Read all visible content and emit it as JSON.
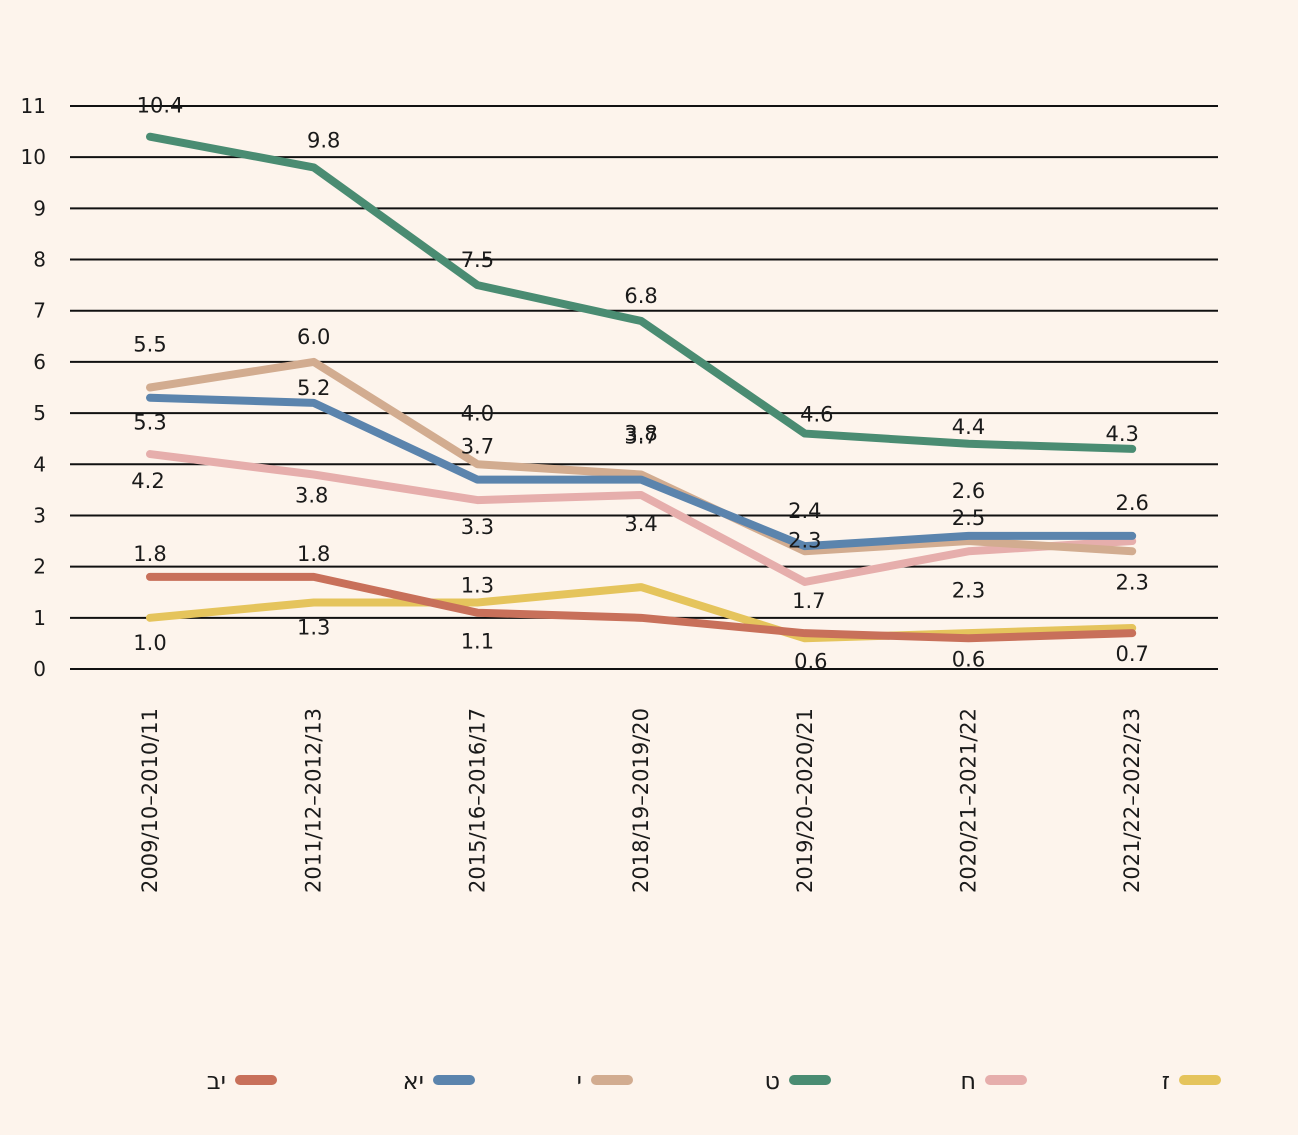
{
  "chart_data": {
    "type": "line",
    "title": "",
    "xlabel": "",
    "ylabel": "",
    "ylim": [
      0,
      11
    ],
    "yticks": [
      "0",
      "1",
      "2",
      "3",
      "4",
      "5",
      "6",
      "7",
      "8",
      "9",
      "10",
      "11"
    ],
    "categories": [
      "2009/10–2010/11",
      "2011/12–2012/13",
      "2015/16–2016/17",
      "2018/19–2019/20",
      "2019/20–2020/21",
      "2020/21–2021/22",
      "2021/22–2022/23"
    ],
    "grid": true,
    "legend_position": "bottom",
    "series": [
      {
        "name": "יב",
        "color": "#c8705a",
        "values": [
          1.8,
          1.8,
          1.1,
          1.0,
          0.7,
          0.6,
          0.7
        ],
        "labels": [
          "1.8",
          "1.8",
          "1.1",
          "",
          "",
          "0.6",
          "0.7"
        ]
      },
      {
        "name": "יא",
        "color": "#5b84ad",
        "values": [
          5.3,
          5.2,
          3.7,
          3.7,
          2.4,
          2.6,
          2.6
        ],
        "labels": [
          "5.3",
          "5.2",
          "3.7",
          "3.7",
          "2.4",
          "2.6",
          "2.6"
        ]
      },
      {
        "name": "י",
        "color": "#d2ac90",
        "values": [
          5.5,
          6.0,
          4.0,
          3.8,
          2.3,
          2.5,
          2.3
        ],
        "labels": [
          "5.5",
          "6.0",
          "4.0",
          "3.8",
          "2.3",
          "2.5",
          "2.3"
        ]
      },
      {
        "name": "ט",
        "color": "#4a8c72",
        "values": [
          10.4,
          9.8,
          7.5,
          6.8,
          4.6,
          4.4,
          4.3
        ],
        "labels": [
          "10.4",
          "9.8",
          "7.5",
          "6.8",
          "4.6",
          "4.4",
          "4.3"
        ]
      },
      {
        "name": "ח",
        "color": "#e6aeac",
        "values": [
          4.2,
          3.8,
          3.3,
          3.4,
          1.7,
          2.3,
          2.5
        ],
        "labels": [
          "4.2",
          "3.8",
          "3.3",
          "3.4",
          "1.7",
          "2.3",
          ""
        ]
      },
      {
        "name": "ז",
        "color": "#e5c45c",
        "values": [
          1.0,
          1.3,
          1.3,
          1.6,
          0.6,
          0.7,
          0.8
        ],
        "labels": [
          "1.0",
          "1.3",
          "1.3",
          "",
          "0.6",
          "",
          ""
        ]
      }
    ]
  }
}
